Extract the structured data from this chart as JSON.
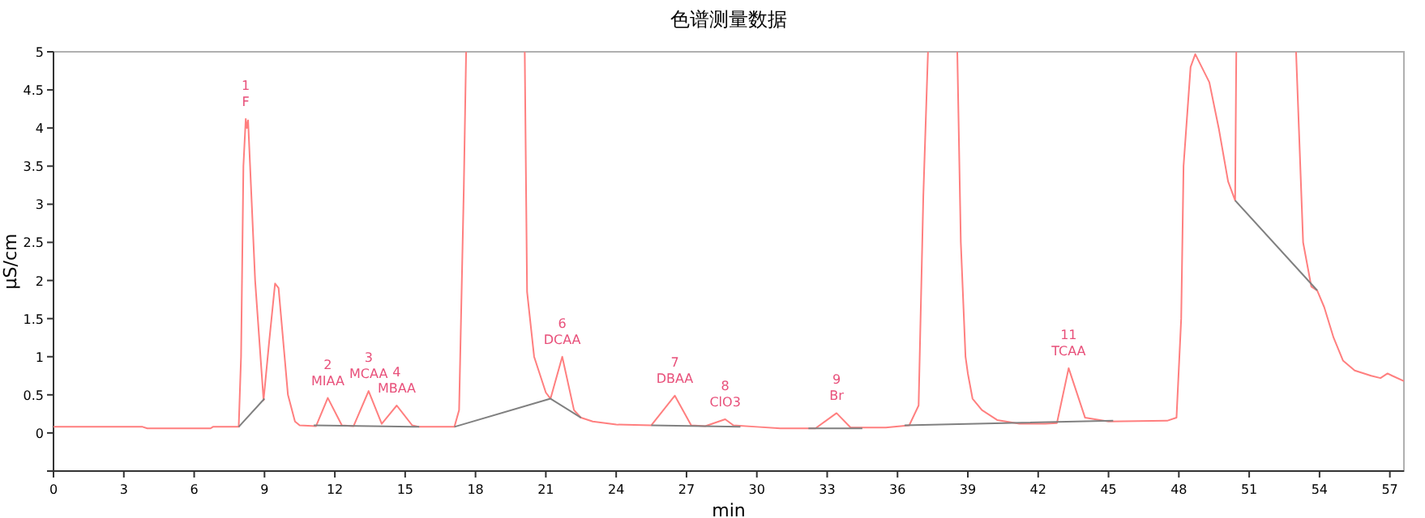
{
  "chart_data": {
    "type": "line",
    "title": "色谱测量数据",
    "xlabel": "min",
    "ylabel": "µS/cm",
    "xlim": [
      0,
      57.6
    ],
    "ylim": [
      -0.5,
      5
    ],
    "xticks": [
      0,
      3,
      6,
      9,
      12,
      15,
      18,
      21,
      24,
      27,
      30,
      33,
      36,
      39,
      42,
      45,
      48,
      51,
      54,
      57
    ],
    "yticks": [
      {
        "value": -0.5,
        "label": null
      },
      0,
      0.5,
      1,
      1.5,
      2,
      2.5,
      3,
      3.5,
      4,
      4.5,
      5
    ],
    "grid": false,
    "marker": "none",
    "line_style": "solid",
    "series": [
      {
        "color": "#ff7f7f",
        "x": [
          0,
          3.8,
          4,
          6.7,
          6.8,
          7.9,
          8.0,
          8.1,
          8.2,
          8.25,
          8.3,
          8.6,
          8.96,
          9.2,
          9.45,
          9.6,
          10.0,
          10.3,
          10.5,
          11.2,
          11.7,
          12.3,
          12.8,
          13.44,
          14.0,
          14.64,
          15.3,
          15.6,
          17.1,
          17.3,
          17.5,
          17.6,
          17.61,
          20.09,
          20.1,
          20.2,
          20.5,
          21.0,
          21.2,
          21.7,
          22.2,
          22.5,
          23,
          24,
          25.5,
          26.5,
          27.2,
          27.8,
          28.65,
          29,
          30,
          31,
          32.5,
          33.4,
          34,
          35.5,
          36.5,
          36.9,
          37.1,
          37.3,
          37.31,
          38.54,
          38.55,
          38.7,
          38.9,
          39.0,
          39.2,
          39.6,
          40.25,
          41.2,
          42.3,
          42.8,
          43.3,
          44,
          45,
          47.5,
          47.9,
          48.1,
          48.2,
          48.5,
          48.7,
          49.3,
          49.7,
          50.1,
          50.4,
          50.45,
          50.46,
          52.99,
          53.0,
          53.3,
          53.65,
          53.9,
          54.2,
          54.6,
          55.0,
          55.5,
          56.2,
          56.6,
          56.9,
          57.1,
          57.6
        ],
        "values": [
          0.08,
          0.08,
          0.06,
          0.06,
          0.08,
          0.08,
          1.0,
          3.5,
          4.12,
          4.0,
          4.1,
          2.0,
          0.43,
          1.2,
          1.96,
          1.9,
          0.5,
          0.15,
          0.1,
          0.09,
          0.46,
          0.1,
          0.09,
          0.55,
          0.12,
          0.36,
          0.1,
          0.08,
          0.08,
          0.3,
          3.2,
          5,
          null,
          null,
          5,
          1.85,
          1.0,
          0.53,
          0.45,
          1.0,
          0.3,
          0.2,
          0.15,
          0.11,
          0.1,
          0.49,
          0.1,
          0.09,
          0.18,
          0.1,
          0.08,
          0.06,
          0.06,
          0.26,
          0.07,
          0.07,
          0.1,
          0.36,
          3.1,
          5,
          null,
          null,
          5,
          2.5,
          1.0,
          0.78,
          0.45,
          0.3,
          0.17,
          0.12,
          0.12,
          0.13,
          0.85,
          0.2,
          0.15,
          0.16,
          0.2,
          1.5,
          3.5,
          4.8,
          4.97,
          4.6,
          4.0,
          3.3,
          3.05,
          5,
          null,
          null,
          5,
          2.5,
          1.92,
          1.87,
          1.65,
          1.25,
          0.95,
          0.82,
          0.75,
          0.72,
          0.78,
          0.75,
          0.68
        ]
      },
      {
        "color": "#808080",
        "x": [
          7.9,
          9.0,
          9.01,
          11.1,
          15.6,
          15.61,
          17.1,
          21.2,
          22.5,
          22.51,
          25.5,
          29.3,
          29.31,
          32.2,
          34.5,
          34.51,
          36.3,
          45.2,
          45.21,
          50.4,
          53.9
        ],
        "values": [
          0.08,
          0.45,
          null,
          0.1,
          0.08,
          null,
          0.08,
          0.45,
          0.2,
          null,
          0.1,
          0.08,
          null,
          0.06,
          0.06,
          null,
          0.1,
          0.16,
          null,
          3.05,
          1.87
        ]
      }
    ],
    "annotations": [
      {
        "text": "1\nF",
        "x": 8.2,
        "y": 4.12
      },
      {
        "text": "2\nMIAA",
        "x": 11.7,
        "y": 0.46
      },
      {
        "text": "3\nMCAA",
        "x": 13.44,
        "y": 0.55
      },
      {
        "text": "4\nMBAA",
        "x": 14.64,
        "y": 0.36
      },
      {
        "text": "6\nDCAA",
        "x": 21.7,
        "y": 1.0
      },
      {
        "text": "7\nDBAA",
        "x": 26.5,
        "y": 0.49
      },
      {
        "text": "8\nClO3",
        "x": 28.65,
        "y": 0.18
      },
      {
        "text": "9\nBr",
        "x": 33.4,
        "y": 0.26
      },
      {
        "text": "11\nTCAA",
        "x": 43.3,
        "y": 0.85
      }
    ]
  }
}
